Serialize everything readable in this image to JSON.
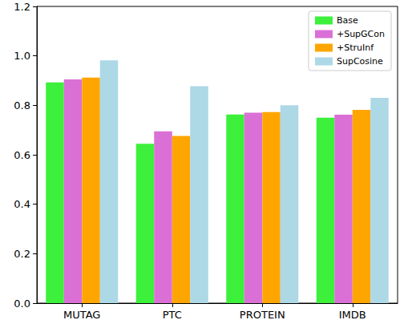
{
  "chart_data": {
    "type": "bar",
    "categories": [
      "MUTAG",
      "PTC",
      "PROTEIN",
      "IMDB"
    ],
    "series": [
      {
        "name": "Base",
        "color": "#3cf03c",
        "values": [
          0.893,
          0.645,
          0.763,
          0.75
        ]
      },
      {
        "name": "+SupGCon",
        "color": "#da70d6",
        "values": [
          0.905,
          0.695,
          0.77,
          0.762
        ]
      },
      {
        "name": "+StruInf",
        "color": "#ffa500",
        "values": [
          0.912,
          0.676,
          0.773,
          0.782
        ]
      },
      {
        "name": "SupCosine",
        "color": "#add8e6",
        "values": [
          0.982,
          0.877,
          0.8,
          0.83
        ]
      }
    ],
    "ylim": [
      0,
      1.2
    ],
    "yticks": [
      {
        "value": 0,
        "label": "0.0"
      },
      {
        "value": 0.2,
        "label": "0.2"
      },
      {
        "value": 0.4,
        "label": "0.4"
      },
      {
        "value": 0.6,
        "label": "0.6"
      },
      {
        "value": 0.8,
        "label": "0.8"
      },
      {
        "value": 1.0,
        "label": "1.0"
      },
      {
        "value": 1.2,
        "label": "1.2"
      }
    ],
    "grid": false,
    "legend": "upper right"
  }
}
